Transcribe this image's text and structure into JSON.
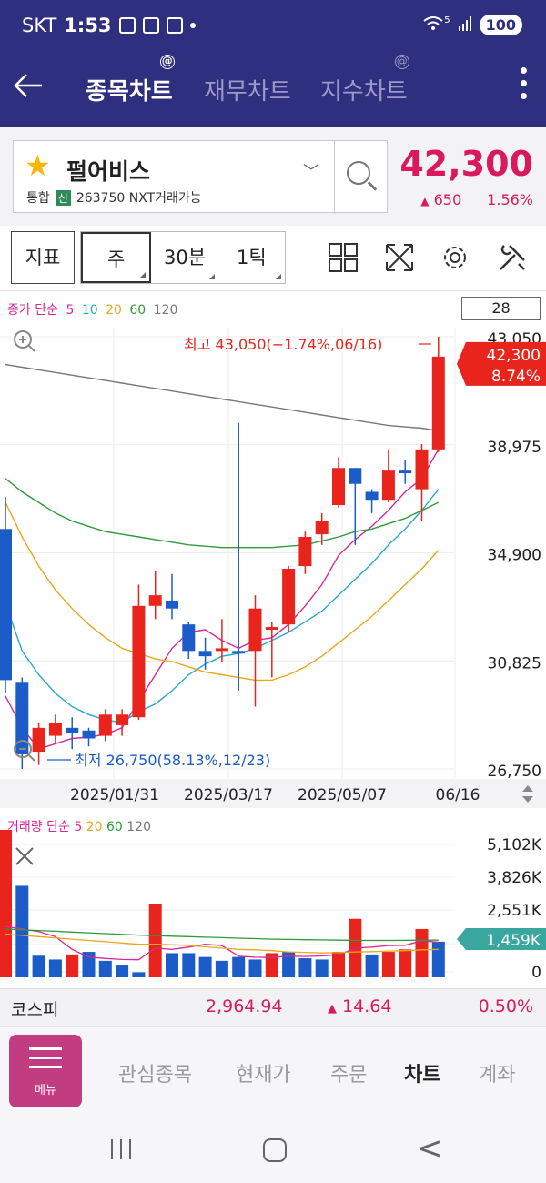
{
  "status": {
    "carrier": "SKT",
    "time": "1:53",
    "battery": "100",
    "network": "5"
  },
  "nav": {
    "tabs": [
      {
        "label": "종목차트",
        "active": true
      },
      {
        "label": "재무차트",
        "active": false
      },
      {
        "label": "지수차트",
        "active": false
      }
    ]
  },
  "stock": {
    "name": "펄어비스",
    "market": "통합",
    "credit": "신",
    "code_info": "263750 NXT거래가능",
    "price": "42,300",
    "change": "650",
    "rate": "1.56%"
  },
  "toolbar": {
    "indicator_label": "지표",
    "periods": [
      "주",
      "30분",
      "1틱"
    ],
    "count": "28"
  },
  "price_legend": {
    "prefix": "종가 단순",
    "items": [
      {
        "label": "5",
        "color": "#d9279a"
      },
      {
        "label": "10",
        "color": "#27a9c9"
      },
      {
        "label": "20",
        "color": "#e7a81c"
      },
      {
        "label": "60",
        "color": "#2e9a3c"
      },
      {
        "label": "120",
        "color": "#777777"
      }
    ]
  },
  "chart_data": [
    {
      "type": "candlestick",
      "name": "price",
      "y_ticks": [
        "43,050",
        "38,975",
        "34,900",
        "30,825",
        "26,750"
      ],
      "ylim": [
        26750,
        43050
      ],
      "x_ticks": [
        "2025/01/31",
        "2025/03/17",
        "2025/05/07",
        "06/16"
      ],
      "high_annotation": "최고 43,050(−1.74%,06/16)",
      "low_annotation": "최저 26,750(58.13%,12/23)",
      "current_tag": {
        "price": "42,300",
        "rate": "8.74%"
      },
      "candles": [
        {
          "o": 35800,
          "c": 30100,
          "h": 37000,
          "l": 29600
        },
        {
          "o": 30000,
          "c": 27300,
          "h": 30200,
          "l": 26750
        },
        {
          "o": 27400,
          "c": 28300,
          "h": 28500,
          "l": 26900
        },
        {
          "o": 28000,
          "c": 28500,
          "h": 28800,
          "l": 27700
        },
        {
          "o": 28300,
          "c": 28100,
          "h": 28700,
          "l": 27500
        },
        {
          "o": 28200,
          "c": 27900,
          "h": 28300,
          "l": 27600
        },
        {
          "o": 28000,
          "c": 28800,
          "h": 29000,
          "l": 27800
        },
        {
          "o": 28400,
          "c": 28800,
          "h": 29000,
          "l": 28000
        },
        {
          "o": 28700,
          "c": 32900,
          "h": 33700,
          "l": 28600
        },
        {
          "o": 32900,
          "c": 33300,
          "h": 34200,
          "l": 32400
        },
        {
          "o": 33100,
          "c": 32800,
          "h": 34100,
          "l": 32400
        },
        {
          "o": 32200,
          "c": 31200,
          "h": 32300,
          "l": 30900
        },
        {
          "o": 31200,
          "c": 31000,
          "h": 31700,
          "l": 30500
        },
        {
          "o": 31200,
          "c": 31300,
          "h": 32400,
          "l": 30800
        },
        {
          "o": 31200,
          "c": 31100,
          "h": 39800,
          "l": 29700
        },
        {
          "o": 31200,
          "c": 32800,
          "h": 33300,
          "l": 29100
        },
        {
          "o": 32000,
          "c": 32100,
          "h": 32300,
          "l": 30200
        },
        {
          "o": 32200,
          "c": 34300,
          "h": 34400,
          "l": 31900
        },
        {
          "o": 34400,
          "c": 35500,
          "h": 35700,
          "l": 34100
        },
        {
          "o": 35600,
          "c": 36100,
          "h": 36400,
          "l": 35200
        },
        {
          "o": 36700,
          "c": 38100,
          "h": 38500,
          "l": 36600
        },
        {
          "o": 38100,
          "c": 37500,
          "h": 38100,
          "l": 35200
        },
        {
          "o": 37200,
          "c": 36900,
          "h": 37300,
          "l": 36400
        },
        {
          "o": 36900,
          "c": 38000,
          "h": 38800,
          "l": 36800
        },
        {
          "o": 38000,
          "c": 37900,
          "h": 38400,
          "l": 37500
        },
        {
          "o": 37300,
          "c": 38800,
          "h": 39000,
          "l": 36100
        },
        {
          "o": 38800,
          "c": 42300,
          "h": 43050,
          "l": 38700
        }
      ],
      "ma": {
        "5": [
          29500,
          28300,
          27500,
          27700,
          27900,
          27950,
          28050,
          28300,
          29300,
          30300,
          31300,
          31900,
          32000,
          31600,
          31300,
          31600,
          31700,
          32200,
          32900,
          33700,
          34800,
          35400,
          35900,
          36500,
          37200,
          37700,
          38800
        ],
        "10": [
          33000,
          31200,
          30300,
          29600,
          29100,
          28800,
          28600,
          28500,
          28900,
          29200,
          29700,
          30300,
          30700,
          31000,
          31100,
          31300,
          31600,
          31900,
          32300,
          32700,
          33300,
          33900,
          34500,
          35200,
          35800,
          36500,
          37300
        ],
        "20": [
          36800,
          35500,
          34400,
          33500,
          32800,
          32200,
          31700,
          31300,
          31100,
          30900,
          30800,
          30600,
          30400,
          30300,
          30200,
          30100,
          30100,
          30300,
          30600,
          31000,
          31500,
          32000,
          32500,
          33100,
          33700,
          34300,
          35000
        ],
        "60": [
          37700,
          37200,
          36800,
          36400,
          36100,
          35900,
          35700,
          35600,
          35500,
          35400,
          35300,
          35200,
          35150,
          35100,
          35100,
          35100,
          35100,
          35150,
          35200,
          35350,
          35500,
          35700,
          35800,
          36000,
          36200,
          36500,
          36800
        ],
        "120": [
          42000,
          41900,
          41800,
          41700,
          41600,
          41500,
          41400,
          41300,
          41200,
          41100,
          41000,
          40900,
          40800,
          40700,
          40600,
          40500,
          40400,
          40300,
          40200,
          40100,
          40000,
          39900,
          39800,
          39700,
          39650,
          39600,
          39500
        ]
      }
    },
    {
      "type": "bar",
      "name": "volume",
      "y_ticks": [
        "5,102K",
        "3,826K",
        "2,551K",
        "1,459K",
        "0"
      ],
      "ylim": [
        0,
        5800
      ],
      "current_tag": "1,459K",
      "values": [
        5800,
        3600,
        850,
        700,
        900,
        1000,
        650,
        500,
        200,
        2900,
        950,
        950,
        800,
        650,
        800,
        700,
        950,
        1000,
        750,
        700,
        1000,
        2300,
        900,
        1000,
        1100,
        1900,
        1400
      ],
      "up": [
        true,
        false,
        false,
        false,
        true,
        false,
        false,
        false,
        false,
        true,
        false,
        false,
        false,
        false,
        false,
        false,
        true,
        false,
        false,
        false,
        true,
        true,
        false,
        true,
        true,
        true,
        false
      ],
      "ma": {
        "5": [
          2000,
          1900,
          1800,
          1600,
          1100,
          800,
          740,
          700,
          690,
          1150,
          1100,
          1190,
          1300,
          1250,
          830,
          790,
          780,
          830,
          820,
          840,
          880,
          1150,
          1190,
          1250,
          1260,
          1440,
          1380
        ],
        "20": [
          1700,
          1650,
          1600,
          1550,
          1500,
          1450,
          1400,
          1350,
          1300,
          1300,
          1280,
          1250,
          1200,
          1150,
          1100,
          1080,
          1050,
          1000,
          980,
          960,
          970,
          1000,
          1010,
          1030,
          1050,
          1080,
          1100
        ],
        "60": [
          1900,
          1870,
          1840,
          1810,
          1780,
          1750,
          1720,
          1690,
          1660,
          1640,
          1620,
          1600,
          1580,
          1560,
          1540,
          1520,
          1500,
          1490,
          1480,
          1470,
          1460,
          1455,
          1450,
          1450,
          1455,
          1460,
          1460
        ]
      }
    }
  ],
  "vol_legend": {
    "prefix": "거래량 단순",
    "items": [
      {
        "label": "5",
        "color": "#d9279a"
      },
      {
        "label": "20",
        "color": "#e7a81c"
      },
      {
        "label": "60",
        "color": "#2e9a3c"
      },
      {
        "label": "120",
        "color": "#777777"
      }
    ]
  },
  "index": {
    "name": "코스피",
    "value": "2,964.94",
    "change": "14.64",
    "rate": "0.50%"
  },
  "bottom_nav": {
    "menu_label": "메뉴",
    "items": [
      {
        "label": "관심종목",
        "active": false
      },
      {
        "label": "현재가",
        "active": false
      },
      {
        "label": "주문",
        "active": false
      },
      {
        "label": "차트",
        "active": true
      },
      {
        "label": "계좌",
        "active": false
      }
    ]
  },
  "colors": {
    "up": "#e8241c",
    "down": "#1c5cc8",
    "accent": "#2f2f7f",
    "price": "#d8195c"
  }
}
